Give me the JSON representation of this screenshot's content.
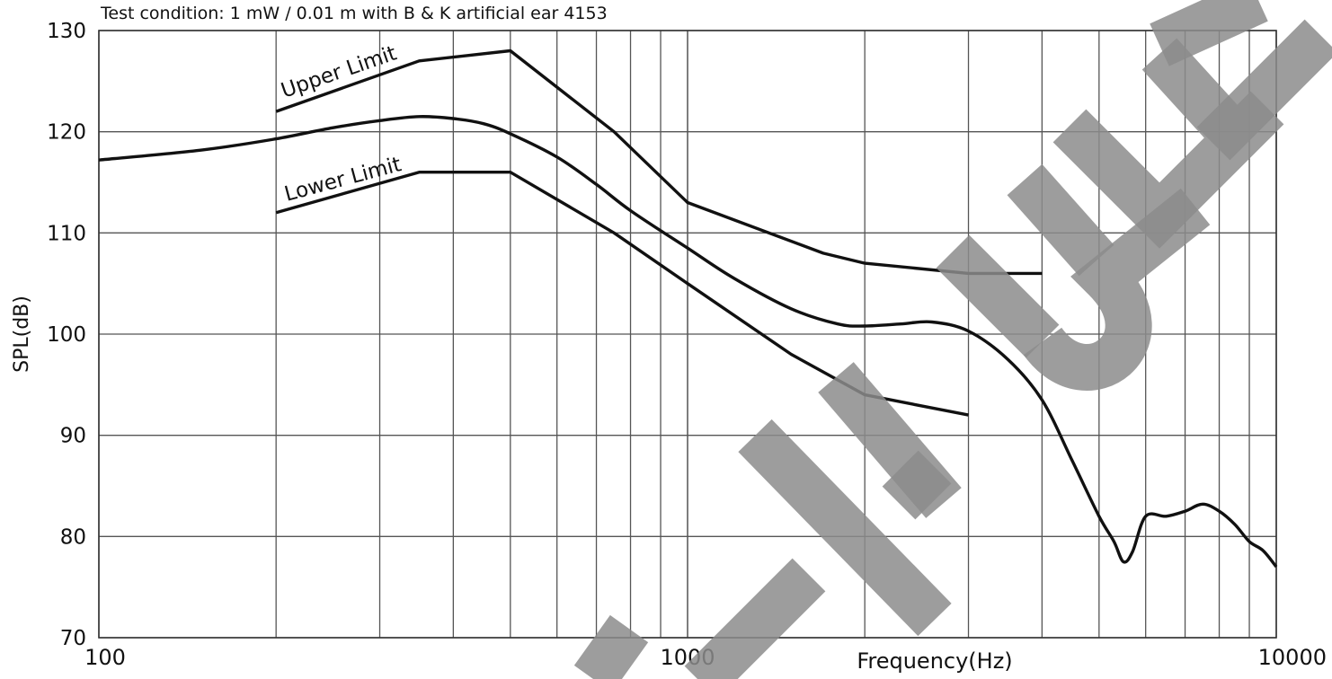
{
  "chart_data": {
    "type": "line",
    "title": "Test condition: 1 mW / 0.01 m with B & K artificial ear 4153",
    "xlabel": "Frequency(Hz)",
    "ylabel": "SPL(dB)",
    "x_scale": "log",
    "xlim": [
      100,
      10000
    ],
    "ylim": [
      70,
      130
    ],
    "grid": true,
    "x_tick_labels": [
      "100",
      "1000",
      "10000"
    ],
    "y_tick_labels": [
      "70",
      "80",
      "90",
      "100",
      "110",
      "120",
      "130"
    ],
    "series": [
      {
        "name": "Upper Limit",
        "x": [
          200,
          350,
          500,
          750,
          1000,
          1700,
          2000,
          3000,
          4000
        ],
        "y": [
          122,
          127,
          128,
          120,
          113,
          108,
          107,
          106,
          106
        ]
      },
      {
        "name": "Lower Limit",
        "x": [
          200,
          350,
          500,
          750,
          1000,
          1500,
          2000,
          3000
        ],
        "y": [
          112,
          116,
          116,
          110,
          105,
          98,
          94,
          92
        ]
      },
      {
        "name": "",
        "x": [
          100,
          150,
          200,
          250,
          300,
          350,
          400,
          450,
          500,
          600,
          700,
          800,
          1000,
          1200,
          1500,
          1800,
          2000,
          2300,
          2600,
          3000,
          3500,
          4000,
          4500,
          5000,
          5300,
          5500,
          5700,
          6000,
          6500,
          7000,
          7500,
          8000,
          8500,
          9000,
          9500,
          10000
        ],
        "y": [
          117.2,
          118.2,
          119.3,
          120.4,
          121.1,
          121.5,
          121.3,
          120.8,
          119.8,
          117.5,
          114.8,
          112.2,
          108.5,
          105.5,
          102.5,
          101.0,
          100.8,
          101.0,
          101.2,
          100.3,
          97.5,
          93.5,
          87.5,
          82.0,
          79.5,
          77.5,
          78.5,
          82.0,
          82.0,
          82.5,
          83.2,
          82.5,
          81.2,
          79.5,
          78.6,
          77.0
        ]
      }
    ]
  }
}
